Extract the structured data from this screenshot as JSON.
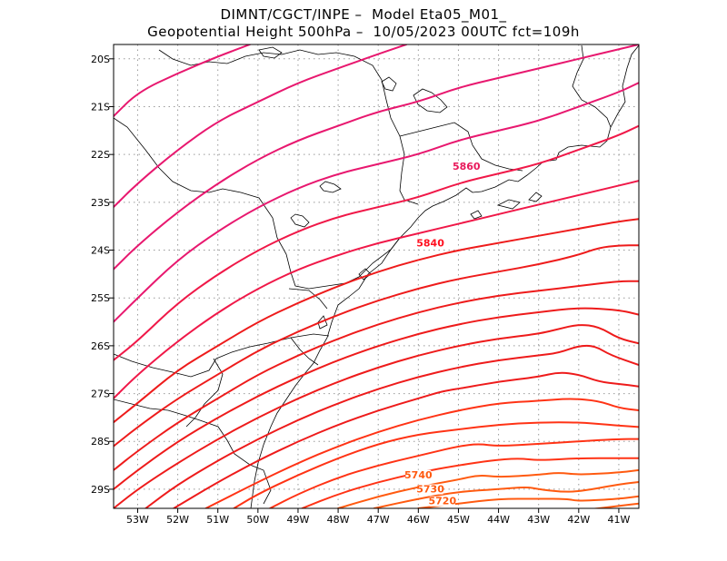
{
  "header": {
    "line1": "DIMNT/CGCT/INPE –  Model Eta05_M01_",
    "line2": "Geopotential Height 500hPa –  10/05/2023 00UTC fct=109h"
  },
  "axes": {
    "lat_labels": [
      "20S",
      "21S",
      "22S",
      "23S",
      "24S",
      "25S",
      "26S",
      "27S",
      "28S",
      "29S"
    ],
    "lon_labels": [
      "53W",
      "52W",
      "51W",
      "50W",
      "49W",
      "48W",
      "47W",
      "46W",
      "45W",
      "44W",
      "43W",
      "42W",
      "41W"
    ],
    "lat_values": [
      -20,
      -21,
      -22,
      -23,
      -24,
      -25,
      -26,
      -27,
      -28,
      -29
    ],
    "lon_values": [
      -53,
      -52,
      -51,
      -50,
      -49,
      -48,
      -47,
      -46,
      -45,
      -44,
      -43,
      -42,
      -41
    ],
    "lon_range": [
      -53.6,
      -40.5
    ],
    "lat_range": [
      -29.4,
      -19.7
    ]
  },
  "contours": {
    "labels": [
      {
        "text": "5860",
        "color": "#e8185a"
      },
      {
        "text": "5840",
        "color": "#ff1020"
      },
      {
        "text": "5740",
        "color": "#ff5a10"
      },
      {
        "text": "5730",
        "color": "#ff5a10"
      },
      {
        "text": "5720",
        "color": "#ff5a10"
      }
    ],
    "colors": {
      "magenta": "#e8186f",
      "pink_red": "#f01848",
      "red": "#ee1b1b",
      "red_orange": "#ff3315",
      "orange": "#ff5a10"
    }
  }
}
